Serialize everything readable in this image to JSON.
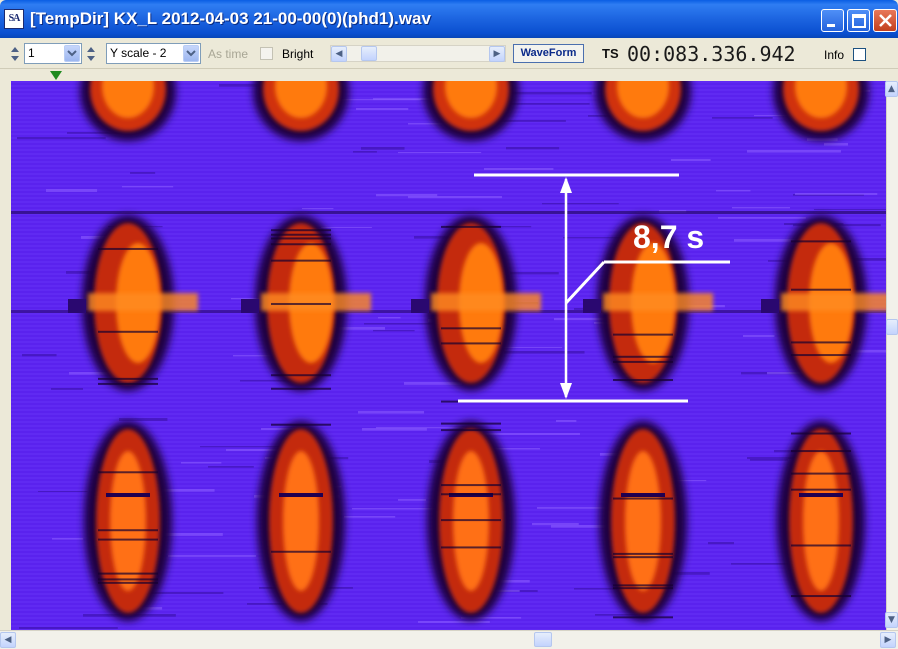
{
  "window": {
    "title": "[TempDir] KX_L 2012-04-03 21-00-00(0)(phd1).wav",
    "app_icon_text": "SA",
    "buttons": [
      "minimize",
      "maximize",
      "close"
    ]
  },
  "toolbar": {
    "channel_value": "1",
    "yscale_value": "Y scale - 2",
    "as_time_label": "As time",
    "as_time_checked": false,
    "bright_label": "Bright",
    "bright_checked": false,
    "waveform_button": "WaveForm",
    "ts_label": "TS",
    "ts_value": "00:083.336.942",
    "info_label": "Info",
    "info_checked": false
  },
  "annotation": {
    "text": "8,7 s"
  },
  "colors": {
    "title_bar": "#0a5ee4",
    "background": "#5a22ee",
    "signal_hot": "#ff6a00",
    "signal_core": "#e23a10",
    "annotation": "#ffffff"
  }
}
